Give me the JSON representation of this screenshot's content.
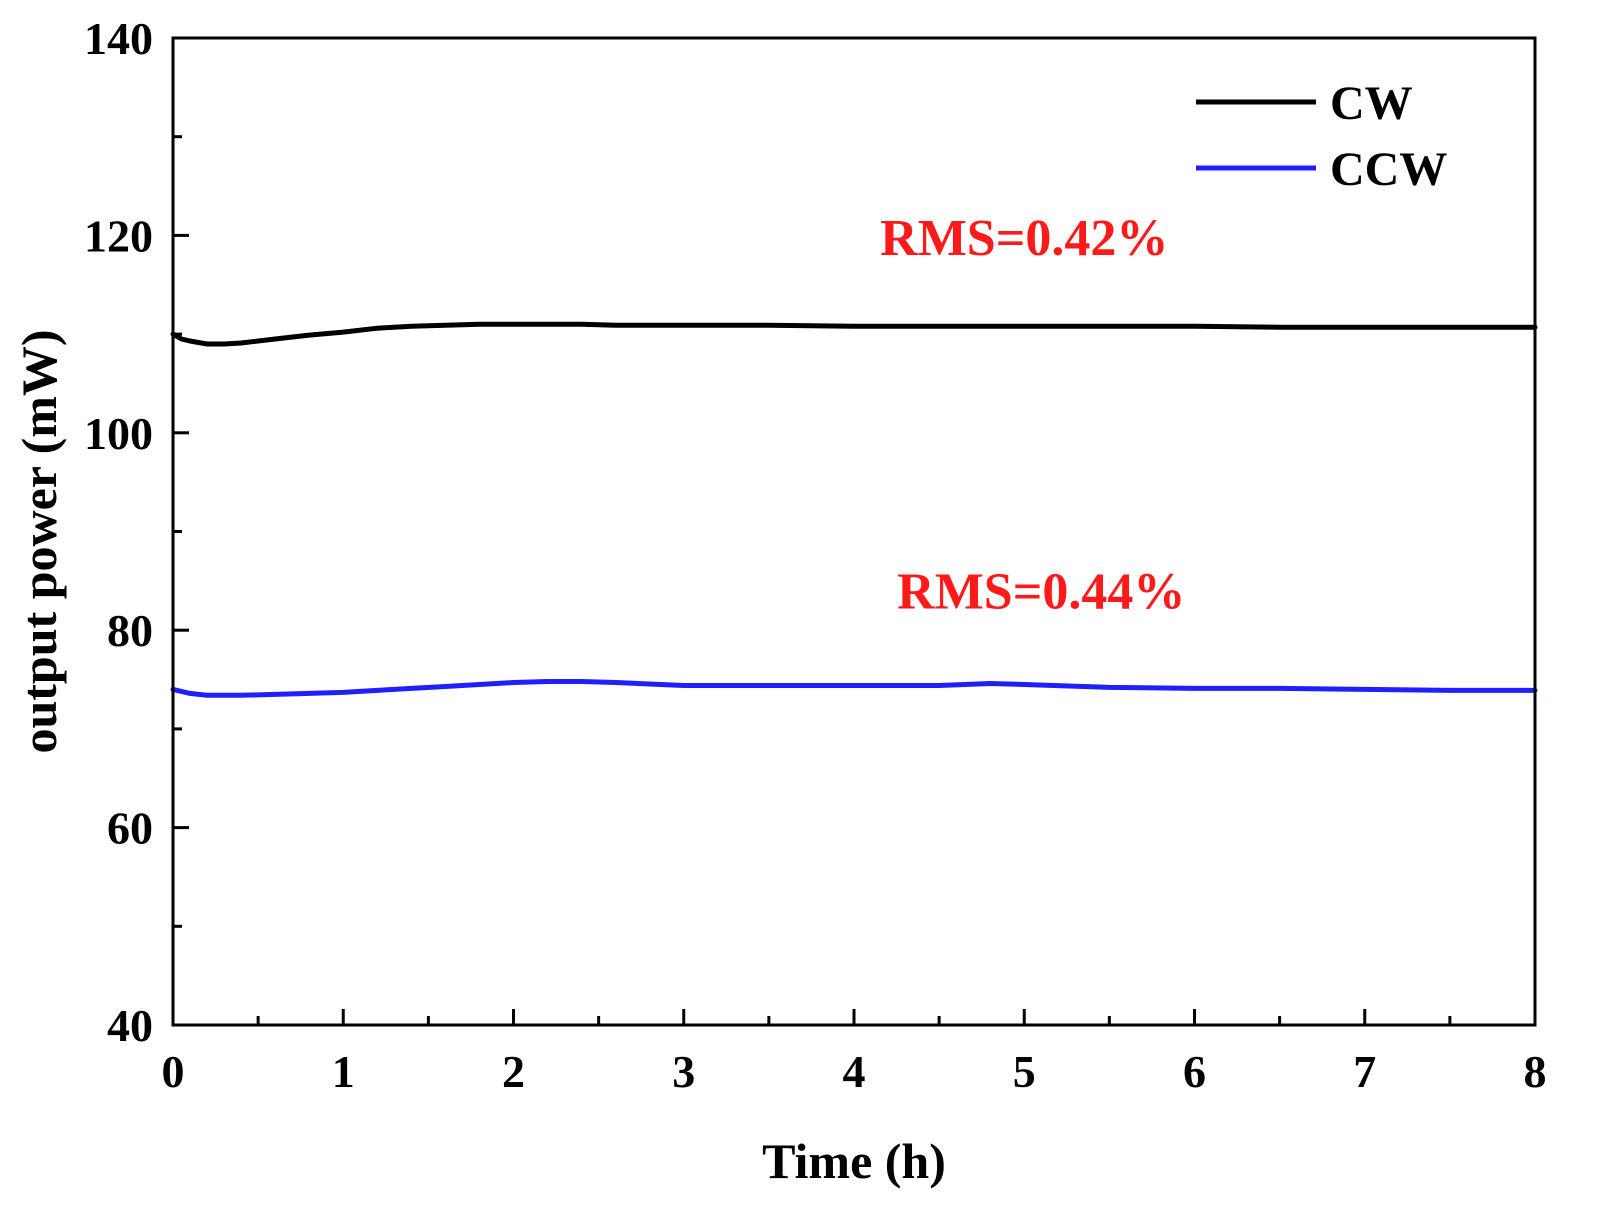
{
  "chart_data": {
    "type": "line",
    "title": "",
    "xlabel": "Time (h)",
    "ylabel": "output power (mW)",
    "xlim": [
      0,
      8
    ],
    "ylim": [
      40,
      140
    ],
    "xticks": [
      0,
      1,
      2,
      3,
      4,
      5,
      6,
      7,
      8
    ],
    "xtick_labels": [
      "0",
      "1",
      "2",
      "3",
      "4",
      "5",
      "6",
      "7",
      "8"
    ],
    "yticks": [
      40,
      60,
      80,
      100,
      120,
      140
    ],
    "ytick_labels": [
      "40",
      "60",
      "80",
      "100",
      "120",
      "140"
    ],
    "minor_x_step": 0.5,
    "minor_y_step": 10,
    "grid": false,
    "legend_position": "top-right",
    "series": [
      {
        "name": "CW",
        "color": "#000000",
        "x": [
          0,
          0.05,
          0.1,
          0.2,
          0.3,
          0.4,
          0.6,
          0.8,
          1.0,
          1.2,
          1.4,
          1.6,
          1.8,
          2.0,
          2.2,
          2.4,
          2.6,
          3.0,
          3.5,
          4.0,
          4.5,
          5.0,
          5.5,
          6.0,
          6.5,
          7.0,
          7.5,
          8.0
        ],
        "y": [
          110.0,
          109.5,
          109.3,
          109.0,
          109.0,
          109.1,
          109.5,
          109.9,
          110.2,
          110.6,
          110.8,
          110.9,
          111.0,
          111.0,
          111.0,
          111.0,
          110.9,
          110.9,
          110.9,
          110.8,
          110.8,
          110.8,
          110.8,
          110.8,
          110.7,
          110.7,
          110.7,
          110.7
        ]
      },
      {
        "name": "CCW",
        "color": "#1f1fff",
        "x": [
          0,
          0.05,
          0.1,
          0.2,
          0.3,
          0.4,
          0.6,
          0.8,
          1.0,
          1.2,
          1.4,
          1.6,
          1.8,
          2.0,
          2.2,
          2.4,
          2.6,
          3.0,
          3.5,
          4.0,
          4.5,
          4.8,
          5.0,
          5.5,
          6.0,
          6.5,
          7.0,
          7.5,
          8.0
        ],
        "y": [
          74.0,
          73.8,
          73.6,
          73.4,
          73.4,
          73.4,
          73.5,
          73.6,
          73.7,
          73.9,
          74.1,
          74.3,
          74.5,
          74.7,
          74.8,
          74.8,
          74.7,
          74.4,
          74.4,
          74.4,
          74.4,
          74.6,
          74.5,
          74.2,
          74.1,
          74.1,
          74.0,
          73.9,
          73.9
        ]
      }
    ],
    "annotations": [
      {
        "text": "RMS=0.42%",
        "x": 5.0,
        "y": 118.0,
        "color": "#ff1a1a"
      },
      {
        "text": "RMS=0.44%",
        "x": 5.1,
        "y": 82.2,
        "color": "#ff1a1a"
      }
    ]
  }
}
